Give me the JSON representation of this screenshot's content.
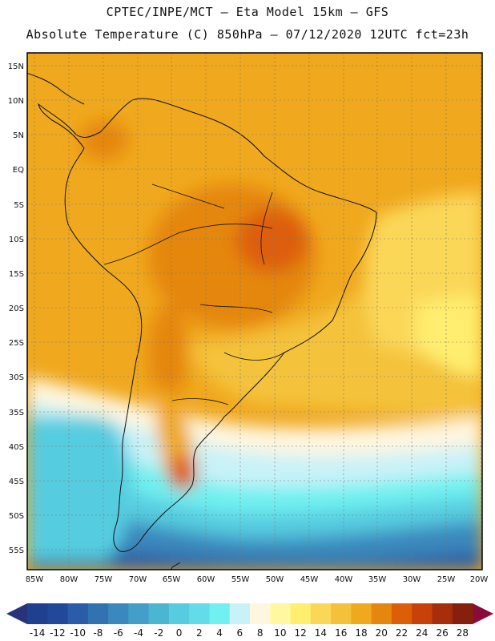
{
  "header": {
    "line1": "CPTEC/INPE/MCT –   Eta Model 15km – GFS",
    "line2": "Absolute Temperature (C) 850hPa – 07/12/2020 12UTC fct=23h"
  },
  "axes": {
    "latitudes": [
      "15N",
      "10N",
      "5N",
      "EQ",
      "5S",
      "10S",
      "15S",
      "20S",
      "25S",
      "30S",
      "35S",
      "40S",
      "45S",
      "50S",
      "55S"
    ],
    "longitudes": [
      "85W",
      "80W",
      "75W",
      "70W",
      "65W",
      "60W",
      "55W",
      "50W",
      "45W",
      "40W",
      "35W",
      "30W",
      "25W",
      "20W"
    ]
  },
  "colorbar": {
    "labels": [
      "-14",
      "-12",
      "-10",
      "-8",
      "-6",
      "-4",
      "-2",
      "0",
      "2",
      "4",
      "6",
      "8",
      "10",
      "12",
      "14",
      "16",
      "18",
      "20",
      "22",
      "24",
      "26",
      "28"
    ],
    "colors": [
      "#1f3f8f",
      "#22489a",
      "#2a5ca8",
      "#3172b3",
      "#3a88bd",
      "#42a0c8",
      "#4cb6d2",
      "#57cce0",
      "#63dcea",
      "#70f0f0",
      "#c8f2f8",
      "#fff6e0",
      "#fff8a0",
      "#ffee70",
      "#fbd758",
      "#f4c23a",
      "#f0a81e",
      "#e5860e",
      "#dd5e08",
      "#c8400a",
      "#a72e0c",
      "#85200d"
    ],
    "under_color": "#27337a",
    "over_color": "#8a0a3a"
  }
}
